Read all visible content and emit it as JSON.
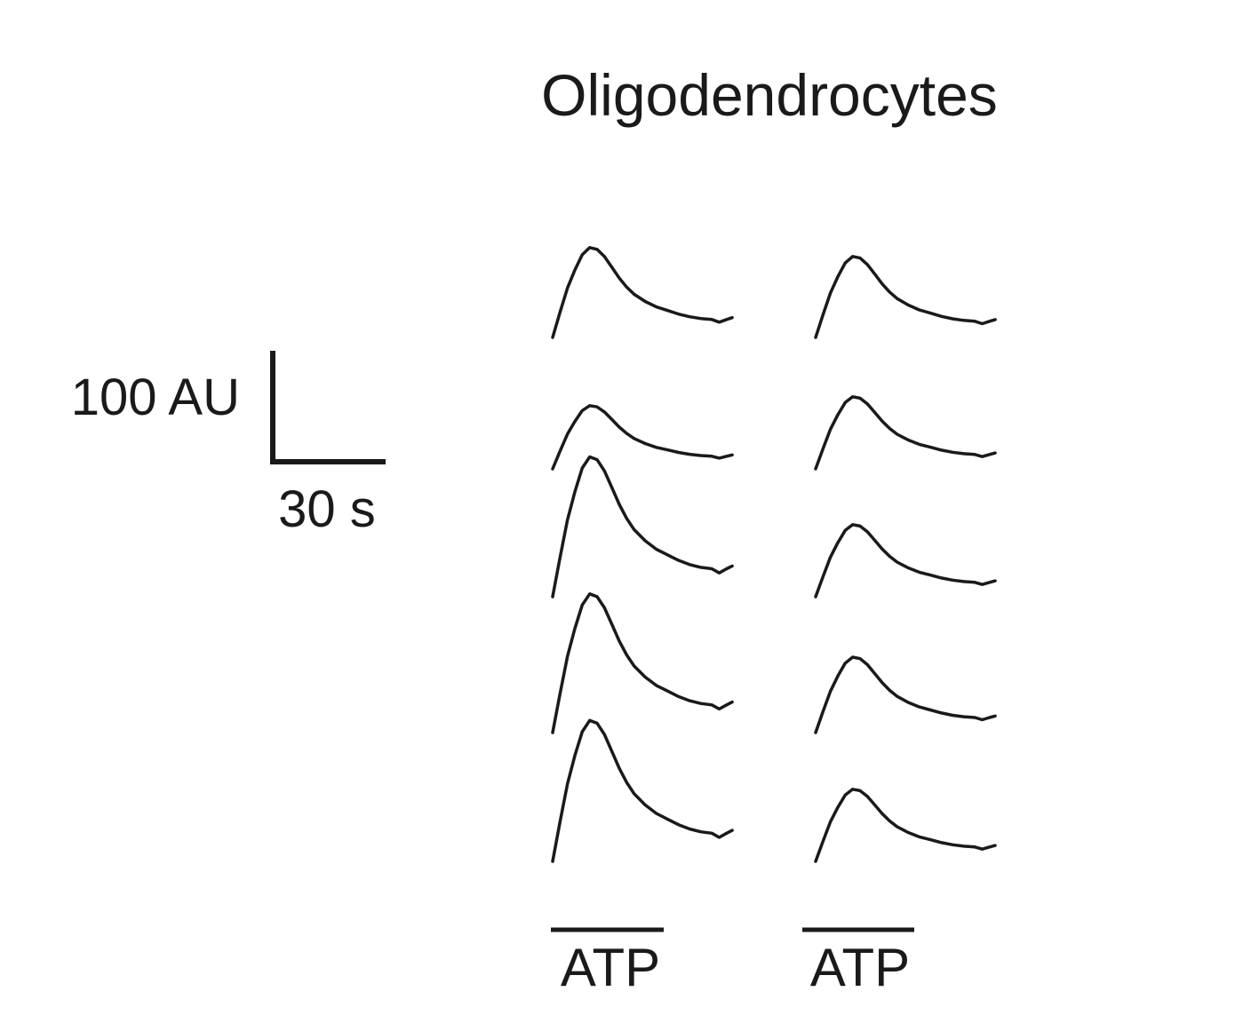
{
  "chart_data": {
    "type": "line",
    "title": "Oligodendrocytes",
    "scale_bar": {
      "y_label": "100 AU",
      "y_value": 100,
      "y_unit": "AU",
      "x_label": "30 s",
      "x_value": 30,
      "x_unit": "s"
    },
    "stimulus_label": "ATP",
    "columns": [
      {
        "stimulus": "ATP",
        "traces": [
          {
            "peak": 81
          },
          {
            "peak": 57
          },
          {
            "peak": 126
          },
          {
            "peak": 125
          },
          {
            "peak": 127
          }
        ]
      },
      {
        "stimulus": "ATP",
        "traces": [
          {
            "peak": 73
          },
          {
            "peak": 65
          },
          {
            "peak": 65
          },
          {
            "peak": 68
          },
          {
            "peak": 65
          }
        ]
      }
    ]
  }
}
